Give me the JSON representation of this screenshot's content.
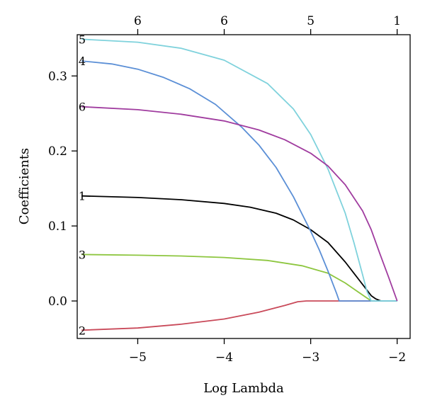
{
  "chart_data": {
    "type": "line",
    "xlabel": "Log Lambda",
    "ylabel": "Coefficients",
    "xlim": [
      -5.7,
      -1.85
    ],
    "ylim": [
      -0.05,
      0.355
    ],
    "x_ticks": [
      -5,
      -4,
      -3,
      -2
    ],
    "x_tick_labels": [
      "−5",
      "−4",
      "−3",
      "−2"
    ],
    "y_ticks": [
      0.0,
      0.1,
      0.2,
      0.3
    ],
    "y_tick_labels": [
      "0.0",
      "0.1",
      "0.2",
      "0.3"
    ],
    "top_axis": {
      "ticks": [
        -5,
        -4,
        -3,
        -2
      ],
      "labels": [
        "6",
        "6",
        "5",
        "1"
      ]
    },
    "grid": false,
    "series": [
      {
        "name": "1",
        "color": "#000000",
        "x": [
          -5.65,
          -5.0,
          -4.5,
          -4.0,
          -3.7,
          -3.4,
          -3.2,
          -3.0,
          -2.8,
          -2.6,
          -2.5,
          -2.4,
          -2.3,
          -2.25,
          -2.2,
          -2.18
        ],
        "y": [
          0.14,
          0.138,
          0.135,
          0.13,
          0.125,
          0.117,
          0.108,
          0.095,
          0.078,
          0.052,
          0.037,
          0.022,
          0.007,
          0.003,
          0.0005,
          0.0
        ]
      },
      {
        "name": "2",
        "color": "#c94a5a",
        "x": [
          -5.65,
          -5.0,
          -4.5,
          -4.0,
          -3.6,
          -3.3,
          -3.15,
          -3.05,
          -3.0,
          -2.9,
          -2.0
        ],
        "y": [
          -0.039,
          -0.036,
          -0.031,
          -0.024,
          -0.015,
          -0.006,
          -0.001,
          0.0,
          0.0,
          0.0,
          0.0
        ]
      },
      {
        "name": "3",
        "color": "#8dc63f",
        "x": [
          -5.65,
          -5.0,
          -4.5,
          -4.0,
          -3.5,
          -3.1,
          -2.8,
          -2.6,
          -2.5,
          -2.4,
          -2.3,
          -2.0
        ],
        "y": [
          0.062,
          0.061,
          0.06,
          0.058,
          0.054,
          0.047,
          0.037,
          0.024,
          0.016,
          0.008,
          0.0,
          0.0
        ]
      },
      {
        "name": "4",
        "color": "#5b8fd6",
        "x": [
          -5.65,
          -5.3,
          -5.0,
          -4.7,
          -4.4,
          -4.1,
          -3.8,
          -3.6,
          -3.4,
          -3.2,
          -3.0,
          -2.9,
          -2.8,
          -2.7,
          -2.67,
          -2.0
        ],
        "y": [
          0.32,
          0.316,
          0.309,
          0.298,
          0.283,
          0.262,
          0.232,
          0.208,
          0.178,
          0.139,
          0.093,
          0.068,
          0.04,
          0.01,
          0.0,
          0.0
        ]
      },
      {
        "name": "5",
        "color": "#7fd2dc",
        "x": [
          -5.65,
          -5.0,
          -4.5,
          -4.0,
          -3.5,
          -3.2,
          -3.0,
          -2.8,
          -2.6,
          -2.5,
          -2.4,
          -2.35,
          -2.3,
          -2.0
        ],
        "y": [
          0.349,
          0.345,
          0.337,
          0.321,
          0.29,
          0.256,
          0.222,
          0.176,
          0.117,
          0.078,
          0.035,
          0.013,
          0.0,
          0.0
        ]
      },
      {
        "name": "6",
        "color": "#a03c9f",
        "x": [
          -5.65,
          -5.0,
          -4.5,
          -4.0,
          -3.6,
          -3.3,
          -3.0,
          -2.8,
          -2.6,
          -2.4,
          -2.3,
          -2.2,
          -2.1,
          -2.0
        ],
        "y": [
          0.259,
          0.255,
          0.249,
          0.24,
          0.228,
          0.215,
          0.197,
          0.18,
          0.155,
          0.12,
          0.095,
          0.063,
          0.032,
          0.0
        ]
      }
    ]
  }
}
